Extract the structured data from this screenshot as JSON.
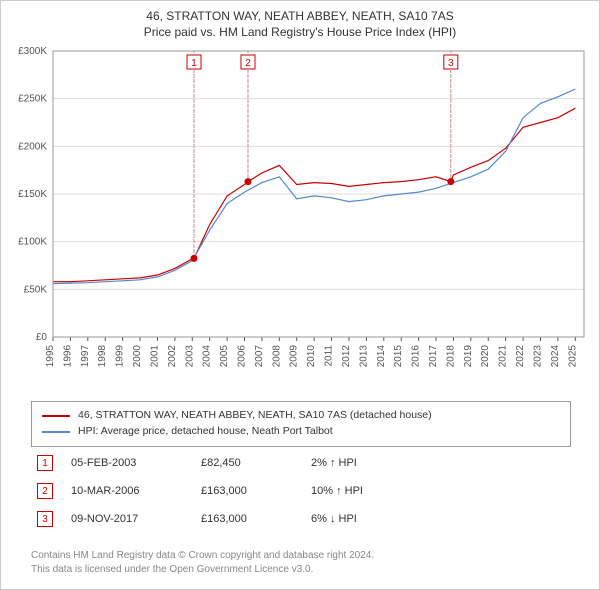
{
  "title_line1": "46, STRATTON WAY, NEATH ABBEY, NEATH, SA10 7AS",
  "title_line2": "Price paid vs. HM Land Registry's House Price Index (HPI)",
  "chart": {
    "type": "line",
    "background_color": "#ffffff",
    "plot_border_color": "#999999",
    "grid_color": "#dddddd",
    "x": {
      "min": 1995,
      "max": 2025.5,
      "ticks": [
        1995,
        1996,
        1997,
        1998,
        1999,
        2000,
        2001,
        2002,
        2003,
        2004,
        2005,
        2006,
        2007,
        2008,
        2009,
        2010,
        2011,
        2012,
        2013,
        2014,
        2015,
        2016,
        2017,
        2018,
        2019,
        2020,
        2021,
        2022,
        2023,
        2024,
        2025
      ],
      "tick_rotation": -90,
      "tick_fontsize": 10
    },
    "y": {
      "min": 0,
      "max": 300000,
      "ticks": [
        0,
        50000,
        100000,
        150000,
        200000,
        250000,
        300000
      ],
      "tick_labels": [
        "£0",
        "£50K",
        "£100K",
        "£150K",
        "£200K",
        "£250K",
        "£300K"
      ],
      "tick_fontsize": 10
    },
    "series": [
      {
        "name": "property",
        "color": "#cc0000",
        "line_width": 1.2,
        "x": [
          1995,
          1996,
          1997,
          1998,
          1999,
          2000,
          2001,
          2002,
          2003,
          2003.1,
          2004,
          2005,
          2006,
          2006.2,
          2007,
          2008,
          2009,
          2010,
          2011,
          2012,
          2013,
          2014,
          2015,
          2016,
          2017,
          2017.85,
          2018,
          2019,
          2020,
          2021,
          2022,
          2023,
          2024,
          2025
        ],
        "y": [
          58000,
          58000,
          59000,
          60000,
          61000,
          62000,
          65000,
          72000,
          82000,
          82450,
          118000,
          148000,
          160000,
          163000,
          172000,
          180000,
          160000,
          162000,
          161000,
          158000,
          160000,
          162000,
          163000,
          165000,
          168000,
          163000,
          170000,
          178000,
          185000,
          198000,
          220000,
          225000,
          230000,
          240000
        ]
      },
      {
        "name": "hpi",
        "color": "#5588cc",
        "line_width": 1.2,
        "x": [
          1995,
          1996,
          1997,
          1998,
          1999,
          2000,
          2001,
          2002,
          2003,
          2004,
          2005,
          2006,
          2007,
          2008,
          2009,
          2010,
          2011,
          2012,
          2013,
          2014,
          2015,
          2016,
          2017,
          2018,
          2019,
          2020,
          2021,
          2022,
          2023,
          2024,
          2025
        ],
        "y": [
          56000,
          56500,
          57000,
          58000,
          59000,
          60000,
          63000,
          70000,
          80000,
          112000,
          140000,
          152000,
          162000,
          168000,
          145000,
          148000,
          146000,
          142000,
          144000,
          148000,
          150000,
          152000,
          156000,
          162000,
          168000,
          176000,
          195000,
          230000,
          245000,
          252000,
          260000
        ]
      }
    ],
    "markers": [
      {
        "n": "1",
        "x": 2003.1,
        "y": 82450,
        "box_y_top": 6
      },
      {
        "n": "2",
        "x": 2006.2,
        "y": 163000,
        "box_y_top": 6
      },
      {
        "n": "3",
        "x": 2017.85,
        "y": 163000,
        "box_y_top": 6
      }
    ],
    "marker_style": {
      "dot_color": "#cc0000",
      "dot_radius": 3.5,
      "vline_color": "#cc8888",
      "vline_dash": "2,3",
      "box_border": "#cc0000",
      "box_text_color": "#cc0000",
      "box_size": 14,
      "box_fontsize": 10
    }
  },
  "legend": {
    "items": [
      {
        "color": "#cc0000",
        "label": "46, STRATTON WAY, NEATH ABBEY, NEATH, SA10 7AS (detached house)"
      },
      {
        "color": "#5588cc",
        "label": "HPI: Average price, detached house, Neath Port Talbot"
      }
    ]
  },
  "sales": [
    {
      "n": "1",
      "date": "05-FEB-2003",
      "price": "£82,450",
      "hpi": "2% ↑ HPI"
    },
    {
      "n": "2",
      "date": "10-MAR-2006",
      "price": "£163,000",
      "hpi": "10% ↑ HPI"
    },
    {
      "n": "3",
      "date": "09-NOV-2017",
      "price": "£163,000",
      "hpi": "6% ↓ HPI"
    }
  ],
  "footer_line1": "Contains HM Land Registry data © Crown copyright and database right 2024.",
  "footer_line2": "This data is licensed under the Open Government Licence v3.0."
}
